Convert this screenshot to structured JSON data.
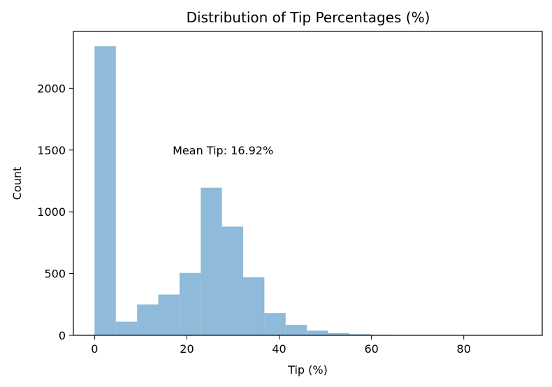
{
  "chart_data": {
    "type": "bar",
    "title": "Distribution of Tip Percentages (%)",
    "xlabel": "Tip (%)",
    "ylabel": "Count",
    "xlim": [
      -4.6,
      97
    ],
    "ylim": [
      0,
      2460
    ],
    "xticks": [
      0,
      20,
      40,
      60,
      80
    ],
    "yticks": [
      0,
      500,
      1000,
      1500,
      2000
    ],
    "bin_width": 4.6,
    "bins_start": [
      0,
      4.6,
      9.2,
      13.8,
      18.4,
      23.0,
      27.6,
      32.2,
      36.8,
      41.4,
      46.0,
      50.6,
      55.2,
      59.8,
      64.4,
      69.0,
      73.6,
      78.2,
      82.8,
      87.4
    ],
    "values": [
      2340,
      110,
      250,
      330,
      505,
      1195,
      880,
      470,
      180,
      85,
      38,
      18,
      10,
      4,
      2,
      1,
      1,
      0,
      1,
      1
    ],
    "bar_color": "#8fbad9",
    "grid": false,
    "annotation": {
      "text": "Mean Tip: 16.92%",
      "x": 16.92,
      "y": 1500
    }
  }
}
